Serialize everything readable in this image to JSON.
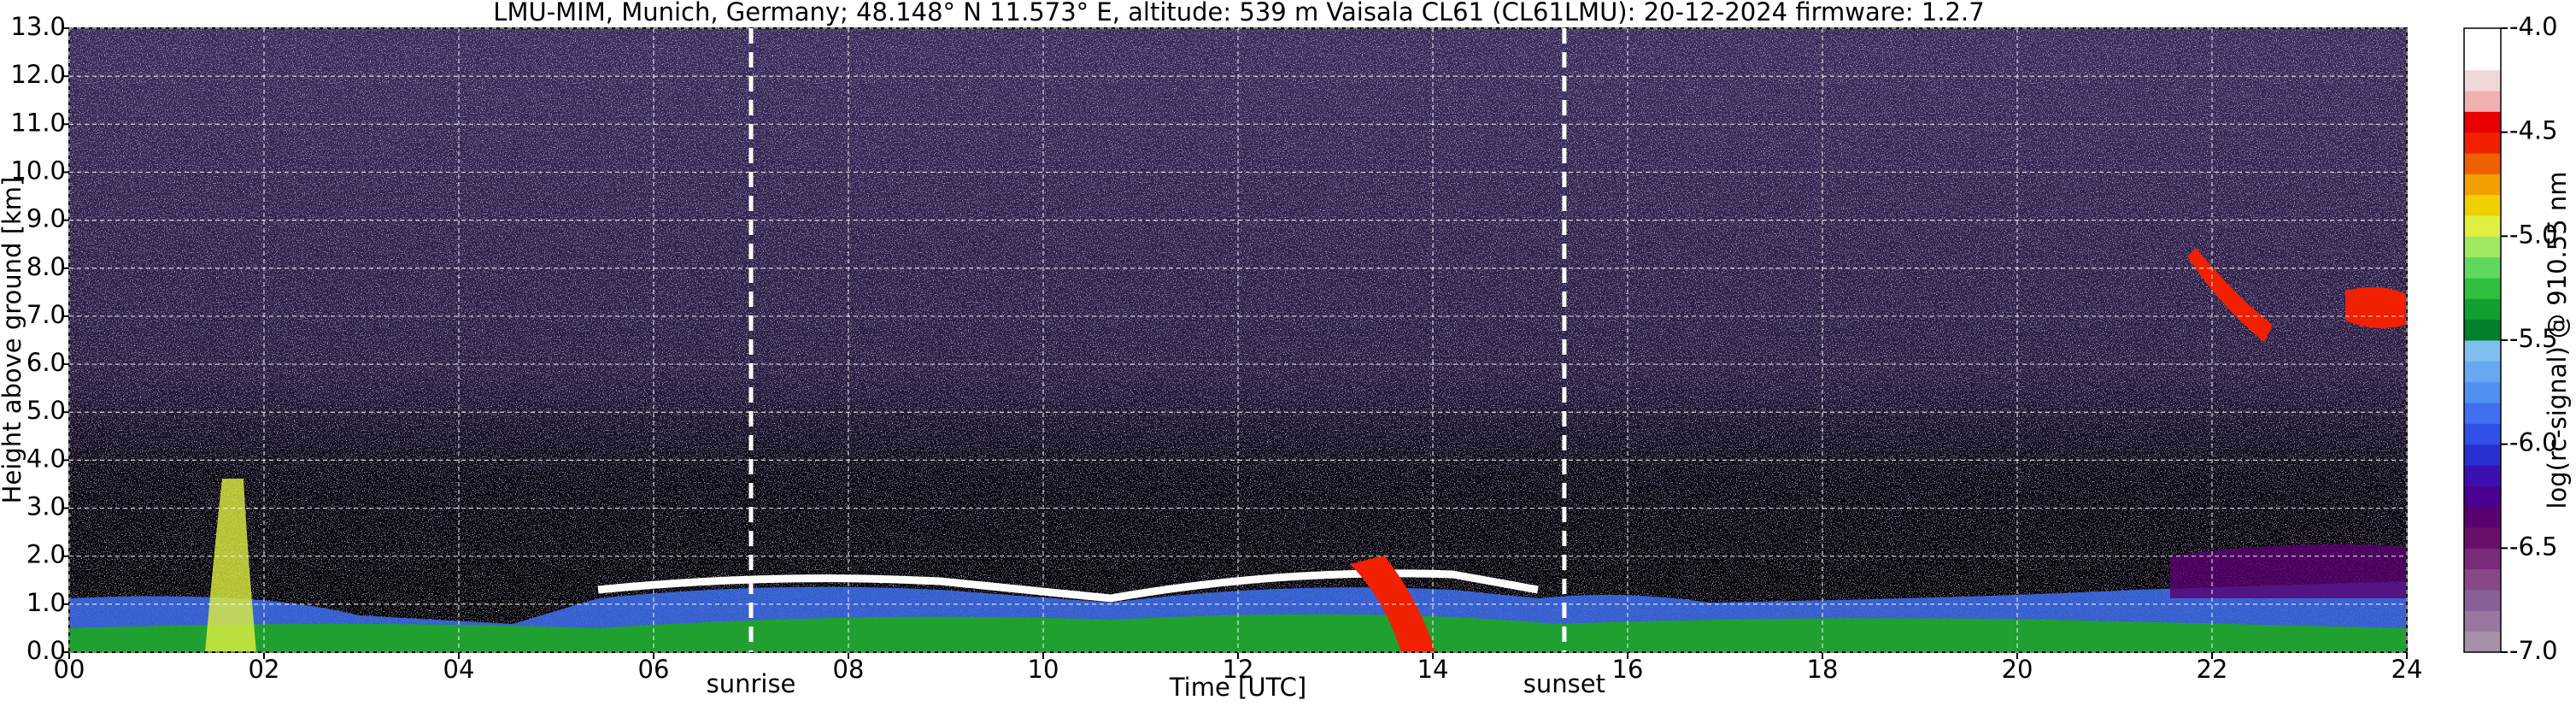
{
  "chart_data": {
    "type": "heatmap",
    "title": "LMU-MIM, Munich, Germany; 48.148° N 11.573° E, altitude: 539 m    Vaisala CL61 (CL61LMU): 20-12-2024    firmware: 1.2.7",
    "x_label": "Time [UTC]",
    "y_label": "Height above ground [km]",
    "xlim": [
      0,
      24
    ],
    "xticks": [
      {
        "value": 0,
        "label": "00"
      },
      {
        "value": 2,
        "label": "02"
      },
      {
        "value": 4,
        "label": "04"
      },
      {
        "value": 6,
        "label": "06"
      },
      {
        "value": 8,
        "label": "08"
      },
      10,
      12,
      14,
      16,
      18,
      20,
      22,
      24
    ],
    "ylim": [
      0,
      13
    ],
    "yticks": [
      {
        "value": 0,
        "label": "0.0"
      },
      {
        "value": 1,
        "label": "1.0"
      },
      {
        "value": 2,
        "label": "2.0"
      },
      {
        "value": 3,
        "label": "3.0"
      },
      {
        "value": 4,
        "label": "4.0"
      },
      {
        "value": 5,
        "label": "5.0"
      },
      {
        "value": 6,
        "label": "6.0"
      },
      {
        "value": 7,
        "label": "7.0"
      },
      {
        "value": 8,
        "label": "8.0"
      },
      {
        "value": 9,
        "label": "9.0"
      },
      {
        "value": 10,
        "label": "10.0"
      },
      {
        "value": 11,
        "label": "11.0"
      },
      {
        "value": 12,
        "label": "12.0"
      },
      {
        "value": 13,
        "label": "13.0"
      }
    ],
    "grid": true,
    "annotations": [
      {
        "label": "sunrise",
        "x": 7.0
      },
      {
        "label": "sunset",
        "x": 15.35
      }
    ],
    "colorbar": {
      "label": "log(rc-signal) @ 910.55 nm",
      "lim": [
        -7.0,
        -4.0
      ],
      "ticks": [
        {
          "value": -4.0,
          "label": "-4.0"
        },
        -4.5,
        {
          "value": -5.0,
          "label": "-5.0"
        },
        -5.5,
        {
          "value": -6.0,
          "label": "-6.0"
        },
        -6.5,
        {
          "value": -7.0,
          "label": "-7.0"
        }
      ],
      "colors": [
        "#a890a8",
        "#9878a0",
        "#886098",
        "#884888",
        "#7a2a7a",
        "#6a106a",
        "#5a0070",
        "#4a0090",
        "#3a10b0",
        "#2a30d0",
        "#3050e8",
        "#4070f0",
        "#5090f0",
        "#68a8f0",
        "#80c0f0",
        "#00802a",
        "#10a030",
        "#30c040",
        "#60d860",
        "#a0e860",
        "#e0f040",
        "#f0d000",
        "#f0a000",
        "#f06000",
        "#f02000",
        "#e80000",
        "#f0b0b0",
        "#f0d8d8",
        "#ffffff",
        "#ffffff"
      ]
    }
  }
}
